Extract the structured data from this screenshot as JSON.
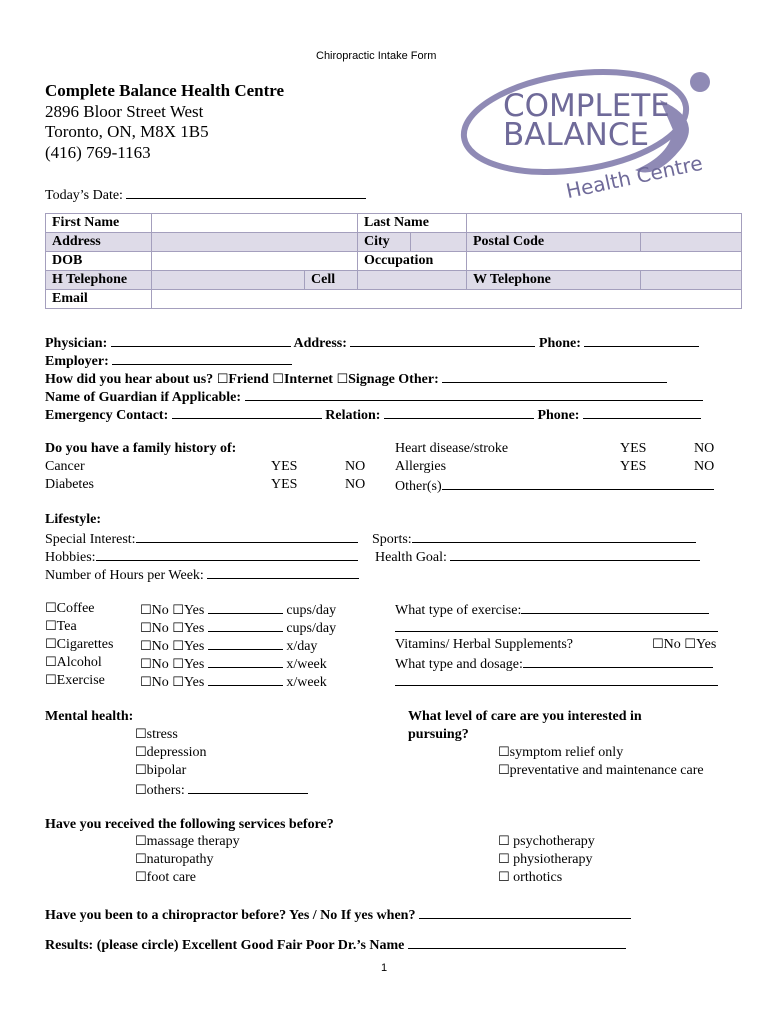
{
  "header": "Chiropractic Intake Form",
  "clinic": {
    "name": "Complete Balance Health Centre",
    "street": "2896 Bloor Street West",
    "city": "Toronto, ON, M8X 1B5",
    "phone": "(416) 769-1163"
  },
  "logo": {
    "line1": "COMPLETE",
    "line2": "BALANCE",
    "line3": "Health Centre",
    "color": "#7d78a8"
  },
  "todays_date": "Today’s Date:",
  "table": {
    "first_name": "First Name",
    "last_name": "Last Name",
    "address": "Address",
    "city": "City",
    "postal_code": "Postal Code",
    "dob": "DOB",
    "occupation": "Occupation",
    "h_tel": "H Telephone",
    "cell": "Cell",
    "w_tel": "W Telephone",
    "email": "Email"
  },
  "info": {
    "physician": "Physician:",
    "address": "Address:",
    "phone": "Phone:",
    "employer": "Employer:",
    "hear": "How did you hear about us?",
    "friend": "Friend",
    "internet": "Internet",
    "signage": "Signage",
    "other": "Other:",
    "guardian": "Name of Guardian if Applicable:",
    "emergency": "Emergency Contact:",
    "relation": "Relation:"
  },
  "family": {
    "title": "Do you have a family history of:",
    "cancer": "Cancer",
    "diabetes": "Diabetes",
    "heart": "Heart disease/stroke",
    "allergies": "Allergies",
    "others": "Other(s)",
    "yes": "YES",
    "no": "NO"
  },
  "lifestyle": {
    "title": "Lifestyle:",
    "interest": "Special Interest:",
    "sports": "Sports:",
    "hobbies": "Hobbies:",
    "goal": "Health Goal:",
    "hours": "Number of Hours per Week:"
  },
  "habits": [
    {
      "item": "Coffee",
      "unit": "cups/day"
    },
    {
      "item": "Tea",
      "unit": "cups/day"
    },
    {
      "item": "Cigarettes",
      "unit": "x/day"
    },
    {
      "item": "Alcohol",
      "unit": "x/week"
    },
    {
      "item": "Exercise",
      "unit": "x/week"
    }
  ],
  "no": "No",
  "yes": "Yes",
  "exercise": {
    "type": "What type of exercise:",
    "vitamins": "Vitamins/ Herbal Supplements?",
    "dosage": "What type and dosage:"
  },
  "mental": {
    "title": "Mental health:",
    "items": [
      "stress",
      "depression",
      "bipolar",
      "others:"
    ]
  },
  "care": {
    "title1": "What level of care are you interested in",
    "title2": "pursuing?",
    "items": [
      "symptom relief only",
      "preventative and maintenance care"
    ]
  },
  "services": {
    "title": "Have you received the following services before?",
    "left": [
      "massage therapy",
      "naturopathy",
      "foot care"
    ],
    "right": [
      "psychotherapy",
      "physiotherapy",
      "orthotics"
    ]
  },
  "chiro": "Have you been to a chiropractor before? Yes / No  If yes when?",
  "results": "Results: (please circle) Excellent  Good  Fair  Poor  Dr.’s Name",
  "page_number": "1"
}
